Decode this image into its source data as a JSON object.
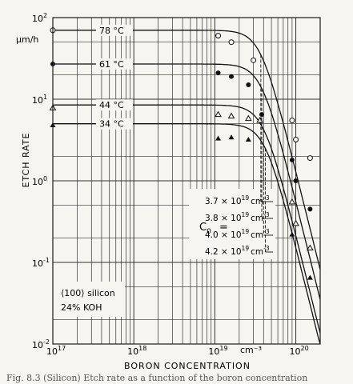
{
  "chart_data": {
    "type": "line",
    "title": "",
    "xlabel": "BORON CONCENTRATION",
    "ylabel": "ETCH RATE",
    "xscale": "log",
    "yscale": "log",
    "xlim": [
      1e+17,
      2e+20
    ],
    "ylim": [
      0.01,
      100
    ],
    "grid": true,
    "x_tick_labels": [
      {
        "exp": 17,
        "text": "10",
        "sup": "17"
      },
      {
        "exp": 18,
        "text": "10",
        "sup": "18"
      },
      {
        "exp": 19,
        "text": "10",
        "sup": "19"
      },
      {
        "exp": 20,
        "text": "10",
        "sup": "20"
      }
    ],
    "y_tick_labels": [
      {
        "exp": 2,
        "text": "10",
        "sup": "2"
      },
      {
        "exp": 1,
        "text": "10",
        "sup": "1"
      },
      {
        "exp": 0,
        "text": "10",
        "sup": "0"
      },
      {
        "exp": -1,
        "text": "10",
        "sup": "-1"
      },
      {
        "exp": -2,
        "text": "10",
        "sup": "-2"
      }
    ],
    "y_unit": "µm/h",
    "x_unit": "cm⁻³",
    "series": [
      {
        "name": "78 °C",
        "marker": "open-circle",
        "plateau": 70,
        "c0": 3.7e+19,
        "points": [
          [
            1e+17,
            70
          ],
          [
            1.1e+19,
            60
          ],
          [
            1.6e+19,
            50
          ],
          [
            3e+19,
            30
          ],
          [
            9e+19,
            5.5
          ],
          [
            1e+20,
            3.2
          ],
          [
            1.5e+20,
            1.9
          ]
        ]
      },
      {
        "name": "61 °C",
        "marker": "filled-circle",
        "plateau": 27,
        "c0": 3.8e+19,
        "points": [
          [
            1e+17,
            27
          ],
          [
            1.1e+19,
            21
          ],
          [
            1.6e+19,
            19
          ],
          [
            2.6e+19,
            15
          ],
          [
            3.8e+19,
            6.5
          ],
          [
            9e+19,
            1.8
          ],
          [
            1e+20,
            1.0
          ],
          [
            1.5e+20,
            0.45
          ]
        ]
      },
      {
        "name": "44 °C",
        "marker": "open-triangle",
        "plateau": 8.5,
        "c0": 4e+19,
        "points": [
          [
            1e+17,
            7.8
          ],
          [
            1.1e+19,
            6.5
          ],
          [
            1.6e+19,
            6.2
          ],
          [
            2.6e+19,
            5.8
          ],
          [
            3.6e+19,
            5.5
          ],
          [
            9e+19,
            0.55
          ],
          [
            1e+20,
            0.3
          ],
          [
            1.5e+20,
            0.15
          ]
        ]
      },
      {
        "name": "34 °C",
        "marker": "filled-triangle",
        "plateau": 5,
        "c0": 4.2e+19,
        "points": [
          [
            1e+17,
            4.8
          ],
          [
            1.1e+19,
            3.3
          ],
          [
            1.6e+19,
            3.4
          ],
          [
            2.6e+19,
            3.2
          ],
          [
            9e+19,
            0.22
          ],
          [
            1.5e+20,
            0.065
          ]
        ]
      }
    ],
    "annotations": {
      "c0_label": "C",
      "c0_sub": "0",
      "c0_eq": "=",
      "c0_values": [
        "3.7 × 10",
        "3.8 × 10",
        "4.0 × 10",
        "4.2 × 10"
      ],
      "c0_sup": "19",
      "c0_unit": "cm",
      "c0_unit_sup": "-3",
      "note_line1": "⟨100⟩ silicon",
      "note_line2": "24% KOH"
    }
  },
  "caption": "Fig. 8.3 (Silicon) Etch rate as a function of the boron concentration"
}
